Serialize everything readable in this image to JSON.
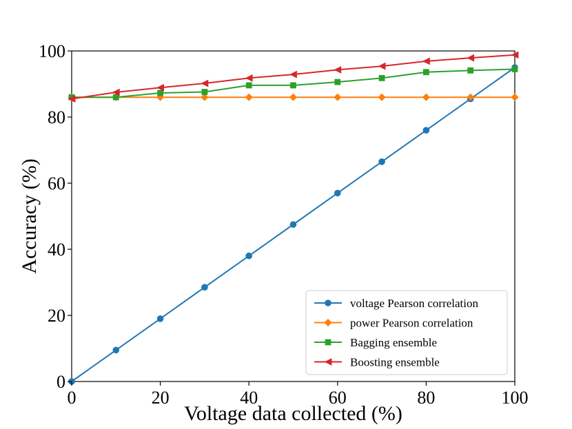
{
  "chart_data": {
    "type": "line",
    "title": "",
    "xlabel": "Voltage data collected (%)",
    "ylabel": "Accuracy (%)",
    "xlim": [
      0,
      100
    ],
    "ylim": [
      0,
      100
    ],
    "xticks": [
      0,
      20,
      40,
      60,
      80,
      100
    ],
    "yticks": [
      0,
      20,
      40,
      60,
      80,
      100
    ],
    "grid": false,
    "legend_position": "bottom-right",
    "x": [
      0,
      10,
      20,
      30,
      40,
      50,
      60,
      70,
      80,
      90,
      100
    ],
    "series": [
      {
        "name": "voltage Pearson correlation",
        "color": "#1f77b4",
        "marker": "circle",
        "values": [
          0,
          9.5,
          19,
          28.5,
          38,
          47.5,
          57,
          66.5,
          76,
          85.5,
          95
        ]
      },
      {
        "name": "power Pearson correlation",
        "color": "#ff7f0e",
        "marker": "diamond",
        "values": [
          86,
          86,
          86,
          86,
          86,
          86,
          86,
          86,
          86,
          86,
          86
        ]
      },
      {
        "name": "Bagging ensemble",
        "color": "#2ca02c",
        "marker": "square",
        "values": [
          86,
          86,
          87.3,
          87.6,
          89.6,
          89.6,
          90.6,
          91.8,
          93.6,
          94.1,
          94.5
        ]
      },
      {
        "name": "Boosting ensemble",
        "color": "#d62728",
        "marker": "triangle-left",
        "values": [
          85.5,
          87.5,
          88.9,
          90.2,
          91.8,
          92.9,
          94.3,
          95.4,
          96.9,
          97.9,
          98.8
        ]
      }
    ]
  }
}
